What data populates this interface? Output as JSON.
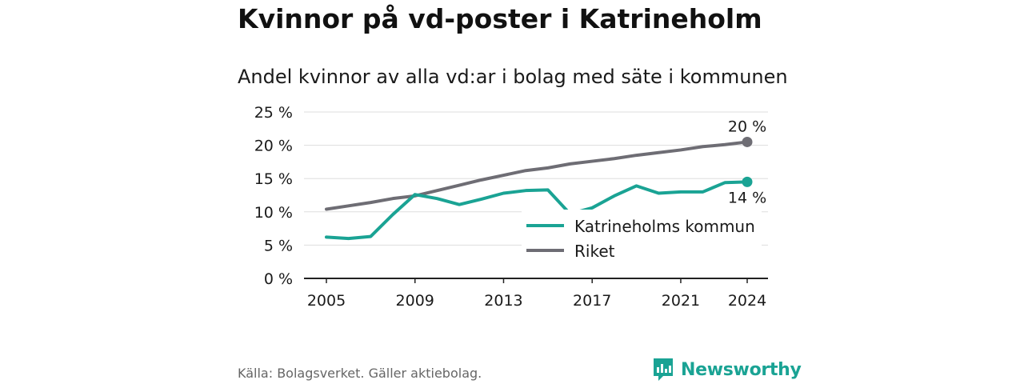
{
  "title": "Kvinnor på vd-poster i Katrineholm",
  "subtitle": "Andel kvinnor av alla vd:ar i bolag med säte i kommunen",
  "source": "Källa: Bolagsverket. Gäller aktiebolag.",
  "brand": "Newsworthy",
  "colors": {
    "katrineholm": "#1aa394",
    "riket": "#6e6d74",
    "grid": "#dddddd"
  },
  "chart_data": {
    "type": "line",
    "x": [
      2005,
      2006,
      2007,
      2008,
      2009,
      2010,
      2011,
      2012,
      2013,
      2014,
      2015,
      2016,
      2017,
      2018,
      2019,
      2020,
      2021,
      2022,
      2023,
      2024
    ],
    "series": [
      {
        "name": "Katrineholms kommun",
        "color": "#1aa394",
        "values": [
          6.2,
          6.0,
          6.3,
          9.6,
          12.6,
          12.0,
          11.1,
          11.9,
          12.8,
          13.2,
          13.3,
          9.7,
          10.6,
          12.4,
          13.9,
          12.8,
          13.0,
          13.0,
          14.4,
          14.5
        ],
        "end_label": "14 %"
      },
      {
        "name": "Riket",
        "color": "#6e6d74",
        "values": [
          10.4,
          10.9,
          11.4,
          12.0,
          12.4,
          13.2,
          14.0,
          14.8,
          15.5,
          16.2,
          16.6,
          17.2,
          17.6,
          18.0,
          18.5,
          18.9,
          19.3,
          19.8,
          20.1,
          20.5
        ],
        "end_label": "20 %"
      }
    ],
    "x_ticks": [
      "2005",
      "2009",
      "2013",
      "2017",
      "2021",
      "2024"
    ],
    "y_ticks": [
      "0 %",
      "5 %",
      "10 %",
      "15 %",
      "20 %",
      "25 %"
    ],
    "ylim": [
      0,
      25
    ],
    "xlabel": "",
    "ylabel": "",
    "grid": true,
    "legend": "center-right"
  }
}
